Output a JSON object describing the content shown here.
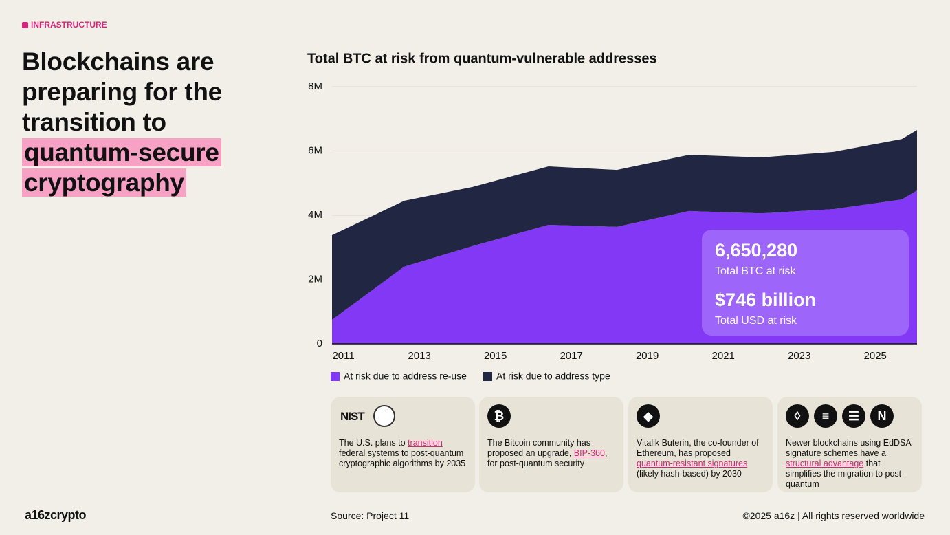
{
  "tag": "INFRASTRUCTURE",
  "headline": {
    "plain": "Blockchains are preparing for the transition to",
    "highlight": "quantum-secure cryptography"
  },
  "chart_data": {
    "type": "area",
    "stacked": true,
    "title": "Total BTC at risk from quantum-vulnerable addresses",
    "x": [
      2010.7,
      2012.6,
      2014.4,
      2016.4,
      2018.2,
      2020.1,
      2022.0,
      2023.9,
      2025.7,
      2026.1
    ],
    "series": [
      {
        "name": "At risk due to address re-use",
        "color": "#8338f5",
        "values": [
          750000,
          2400000,
          3040000,
          3700000,
          3640000,
          4130000,
          4060000,
          4190000,
          4490000,
          4770000
        ]
      },
      {
        "name": "At risk due to address type",
        "color": "#212642",
        "values": [
          2630000,
          2050000,
          1840000,
          1820000,
          1770000,
          1750000,
          1740000,
          1780000,
          1880000,
          1880000
        ]
      }
    ],
    "xlim": [
      2010.7,
      2026.1
    ],
    "xticks": [
      2011,
      2013,
      2015,
      2017,
      2019,
      2021,
      2023,
      2025
    ],
    "ylim": [
      0,
      8000000
    ],
    "yticks": [
      0,
      {
        "value": 2000000,
        "label": "2M"
      },
      {
        "value": 4000000,
        "label": "4M"
      },
      {
        "value": 6000000,
        "label": "6M"
      },
      {
        "value": 8000000,
        "label": "8M"
      }
    ],
    "grid": true,
    "callouts": [
      {
        "value": "6,650,280",
        "label": "Total BTC at risk"
      },
      {
        "value": "$746 billion",
        "label": "Total USD at risk"
      }
    ]
  },
  "cards": [
    {
      "logo": "NIST",
      "before": "The U.S. plans to ",
      "link": "transition",
      "after": " federal systems to post-quantum cryptographic algorithms by 2035"
    },
    {
      "before": "The Bitcoin community has proposed an upgrade, ",
      "link": "BIP-360",
      "after": ", for post-quantum security"
    },
    {
      "before": "Vitalik Buterin, the co-founder of Ethereum, has proposed ",
      "link": "quantum-resistant signatures",
      "after": " (likely hash-based) by 2030"
    },
    {
      "before": "Newer blockchains using EdDSA signature schemes have a ",
      "link": "structural advantage",
      "after": " that simplifies the migration  to post-quantum"
    }
  ],
  "footer": {
    "brand": "a16zcrypto",
    "source": "Source: Project 11",
    "copyright": "©2025 a16z | All rights reserved worldwide"
  }
}
